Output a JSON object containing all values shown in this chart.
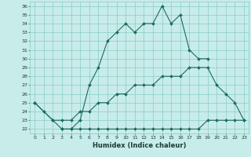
{
  "xlabel": "Humidex (Indice chaleur)",
  "bg_color": "#c8ece9",
  "grid_color": "#88ccc6",
  "line_color": "#1a6b60",
  "xlim": [
    -0.5,
    23.5
  ],
  "ylim": [
    21.5,
    36.5
  ],
  "xticks": [
    0,
    1,
    2,
    3,
    4,
    5,
    6,
    7,
    8,
    9,
    10,
    11,
    12,
    13,
    14,
    15,
    16,
    17,
    18,
    19,
    20,
    21,
    22,
    23
  ],
  "yticks": [
    22,
    23,
    24,
    25,
    26,
    27,
    28,
    29,
    30,
    31,
    32,
    33,
    34,
    35,
    36
  ],
  "line1_x": [
    0,
    1,
    2,
    3,
    4,
    5,
    6,
    7,
    8,
    9,
    10,
    11,
    12,
    13,
    14,
    15,
    16,
    17,
    18,
    19
  ],
  "line1_y": [
    25,
    24,
    23,
    22,
    22,
    23,
    27,
    29,
    32,
    33,
    34,
    33,
    34,
    34,
    36,
    34,
    35,
    31,
    30,
    30
  ],
  "line2_x": [
    3,
    4,
    5,
    6,
    7,
    8,
    9,
    10,
    11,
    12,
    13,
    14,
    15,
    16,
    17,
    18,
    19,
    20,
    21,
    22,
    23
  ],
  "line2_y": [
    22,
    22,
    22,
    22,
    22,
    22,
    22,
    22,
    22,
    22,
    22,
    22,
    22,
    22,
    22,
    22,
    23,
    23,
    23,
    23,
    23
  ],
  "line3_x": [
    0,
    2,
    3,
    4,
    5,
    6,
    7,
    8,
    9,
    10,
    11,
    12,
    13,
    14,
    15,
    16,
    17,
    18,
    19,
    20,
    21,
    22,
    23
  ],
  "line3_y": [
    25,
    23,
    23,
    23,
    24,
    24,
    25,
    25,
    26,
    26,
    27,
    27,
    27,
    28,
    28,
    28,
    29,
    29,
    29,
    27,
    26,
    25,
    23
  ]
}
